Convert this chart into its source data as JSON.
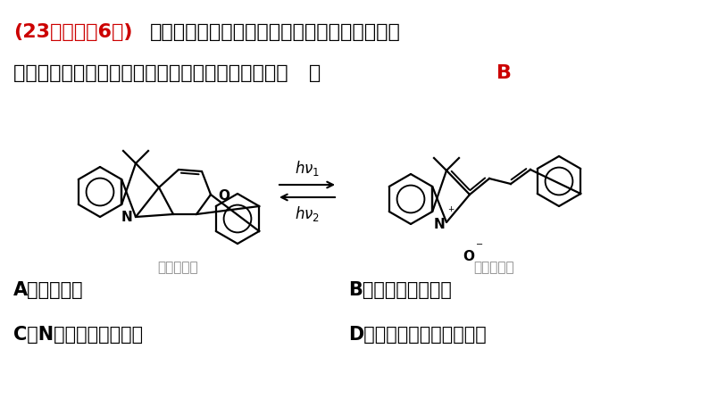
{
  "title_part1": "(23年辽宁卷6题)",
  "title_part2": "．在光照下，螺吵喂发生开、闭环转换而变色，",
  "subtitle": "过程如下。下列关于开、闭环螺吵喂说法正确的是（   ）",
  "answer": "B",
  "option_A": "A．均有手性",
  "option_B": "B．互为同分异构体",
  "option_C": "C．N原子杂化方式相同",
  "option_D": "D．闭环螺吵喂亲水性更好",
  "label_closed": "闭环螺吵喂",
  "label_open": "开环螺吵喂",
  "bg_color": "#ffffff",
  "title_color1": "#cc0000",
  "title_color2": "#000000",
  "answer_color": "#cc0000",
  "text_color": "#000000",
  "label_color": "#888888"
}
